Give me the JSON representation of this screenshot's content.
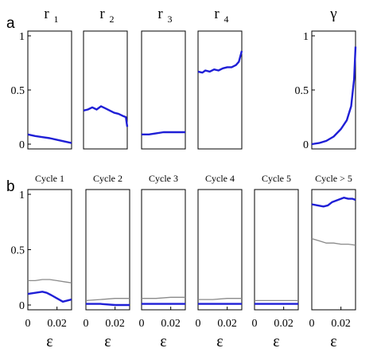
{
  "figure": {
    "label_a": "a",
    "label_b": "b"
  },
  "colors": {
    "blue": "#1f1fd6",
    "gray": "#8a8a8a",
    "frame": "#000000"
  },
  "chart_data": [
    {
      "type": "line",
      "title": "r",
      "title_sub": "1",
      "ylim": [
        0,
        1.0
      ],
      "yticks": [
        {
          "v": 0,
          "label": "0"
        },
        {
          "v": 0.5,
          "label": "0.5"
        },
        {
          "v": 1,
          "label": "1"
        }
      ],
      "xlim": [
        0,
        0.03
      ],
      "xticks": [],
      "series": [
        {
          "color": "blue",
          "x": [
            0,
            0.005,
            0.01,
            0.015,
            0.02,
            0.025,
            0.03
          ],
          "y": [
            0.09,
            0.075,
            0.065,
            0.055,
            0.04,
            0.025,
            0.01
          ]
        }
      ]
    },
    {
      "type": "line",
      "title": "r",
      "title_sub": "2",
      "ylim": [
        0,
        1.0
      ],
      "yticks": [],
      "xlim": [
        0,
        0.03
      ],
      "xticks": [],
      "series": [
        {
          "color": "blue",
          "x": [
            0,
            0.003,
            0.006,
            0.009,
            0.012,
            0.015,
            0.018,
            0.021,
            0.024,
            0.027,
            0.029,
            0.03
          ],
          "y": [
            0.31,
            0.32,
            0.34,
            0.32,
            0.35,
            0.33,
            0.31,
            0.29,
            0.28,
            0.26,
            0.25,
            0.16
          ]
        }
      ]
    },
    {
      "type": "line",
      "title": "r",
      "title_sub": "3",
      "ylim": [
        0,
        1.0
      ],
      "yticks": [],
      "xlim": [
        0,
        0.03
      ],
      "xticks": [],
      "series": [
        {
          "color": "blue",
          "x": [
            0,
            0.005,
            0.01,
            0.015,
            0.02,
            0.025,
            0.03
          ],
          "y": [
            0.09,
            0.09,
            0.1,
            0.11,
            0.11,
            0.11,
            0.11
          ]
        }
      ]
    },
    {
      "type": "line",
      "title": "r",
      "title_sub": "4",
      "ylim": [
        0,
        1.0
      ],
      "yticks": [],
      "xlim": [
        0,
        0.03
      ],
      "xticks": [],
      "series": [
        {
          "color": "blue",
          "x": [
            0,
            0.003,
            0.005,
            0.008,
            0.011,
            0.014,
            0.017,
            0.02,
            0.023,
            0.026,
            0.028,
            0.03
          ],
          "y": [
            0.67,
            0.66,
            0.68,
            0.67,
            0.69,
            0.68,
            0.7,
            0.71,
            0.71,
            0.73,
            0.76,
            0.86
          ]
        }
      ]
    },
    {
      "type": "line",
      "title": "γ",
      "title_sub": "",
      "ylim": [
        0,
        1.0
      ],
      "yticks": [
        {
          "v": 0,
          "label": "0"
        },
        {
          "v": 0.5,
          "label": "0.5"
        },
        {
          "v": 1,
          "label": "1"
        }
      ],
      "xlim": [
        0,
        0.03
      ],
      "xticks": [],
      "series": [
        {
          "color": "blue",
          "x": [
            0,
            0.005,
            0.01,
            0.015,
            0.02,
            0.024,
            0.027,
            0.029,
            0.03
          ],
          "y": [
            0.0,
            0.01,
            0.03,
            0.07,
            0.14,
            0.22,
            0.35,
            0.6,
            0.9
          ]
        }
      ]
    },
    {
      "type": "line",
      "title": "Cycle 1",
      "ylim": [
        0,
        1.0
      ],
      "yticks": [
        {
          "v": 0,
          "label": "0"
        },
        {
          "v": 0.5,
          "label": "0.5"
        },
        {
          "v": 1,
          "label": "1"
        }
      ],
      "xlim": [
        0,
        0.03
      ],
      "xticks": [
        {
          "v": 0,
          "label": "0"
        },
        {
          "v": 0.02,
          "label": "0.02"
        }
      ],
      "xlabel": "ε",
      "series": [
        {
          "color": "gray",
          "x": [
            0,
            0.005,
            0.01,
            0.015,
            0.02,
            0.025,
            0.03
          ],
          "y": [
            0.22,
            0.22,
            0.23,
            0.23,
            0.22,
            0.21,
            0.2
          ]
        },
        {
          "color": "blue",
          "x": [
            0,
            0.005,
            0.01,
            0.013,
            0.016,
            0.02,
            0.024,
            0.027,
            0.03
          ],
          "y": [
            0.1,
            0.11,
            0.12,
            0.11,
            0.09,
            0.06,
            0.03,
            0.04,
            0.05
          ]
        }
      ]
    },
    {
      "type": "line",
      "title": "Cycle 2",
      "ylim": [
        0,
        1.0
      ],
      "yticks": [],
      "xlim": [
        0,
        0.03
      ],
      "xticks": [
        {
          "v": 0,
          "label": "0"
        },
        {
          "v": 0.02,
          "label": "0.02"
        }
      ],
      "xlabel": "ε",
      "series": [
        {
          "color": "gray",
          "x": [
            0,
            0.01,
            0.02,
            0.03
          ],
          "y": [
            0.04,
            0.05,
            0.06,
            0.06
          ]
        },
        {
          "color": "blue",
          "x": [
            0,
            0.01,
            0.02,
            0.03
          ],
          "y": [
            0.01,
            0.01,
            0.0,
            0.0
          ]
        }
      ]
    },
    {
      "type": "line",
      "title": "Cycle 3",
      "ylim": [
        0,
        1.0
      ],
      "yticks": [],
      "xlim": [
        0,
        0.03
      ],
      "xticks": [
        {
          "v": 0,
          "label": "0"
        },
        {
          "v": 0.02,
          "label": "0.02"
        }
      ],
      "xlabel": "ε",
      "series": [
        {
          "color": "gray",
          "x": [
            0,
            0.01,
            0.02,
            0.03
          ],
          "y": [
            0.06,
            0.06,
            0.07,
            0.07
          ]
        },
        {
          "color": "blue",
          "x": [
            0,
            0.01,
            0.02,
            0.03
          ],
          "y": [
            0.01,
            0.01,
            0.01,
            0.01
          ]
        }
      ]
    },
    {
      "type": "line",
      "title": "Cycle 4",
      "ylim": [
        0,
        1.0
      ],
      "yticks": [],
      "xlim": [
        0,
        0.03
      ],
      "xticks": [
        {
          "v": 0,
          "label": "0"
        },
        {
          "v": 0.02,
          "label": "0.02"
        }
      ],
      "xlabel": "ε",
      "series": [
        {
          "color": "gray",
          "x": [
            0,
            0.01,
            0.02,
            0.03
          ],
          "y": [
            0.05,
            0.05,
            0.06,
            0.06
          ]
        },
        {
          "color": "blue",
          "x": [
            0,
            0.01,
            0.02,
            0.03
          ],
          "y": [
            0.01,
            0.01,
            0.01,
            0.01
          ]
        }
      ]
    },
    {
      "type": "line",
      "title": "Cycle 5",
      "ylim": [
        0,
        1.0
      ],
      "yticks": [],
      "xlim": [
        0,
        0.03
      ],
      "xticks": [
        {
          "v": 0,
          "label": "0"
        },
        {
          "v": 0.02,
          "label": "0.02"
        }
      ],
      "xlabel": "ε",
      "series": [
        {
          "color": "gray",
          "x": [
            0,
            0.01,
            0.02,
            0.03
          ],
          "y": [
            0.04,
            0.04,
            0.04,
            0.04
          ]
        },
        {
          "color": "blue",
          "x": [
            0,
            0.01,
            0.02,
            0.03
          ],
          "y": [
            0.01,
            0.01,
            0.01,
            0.01
          ]
        }
      ]
    },
    {
      "type": "line",
      "title": "Cycle > 5",
      "ylim": [
        0,
        1.0
      ],
      "yticks": [],
      "xlim": [
        0,
        0.03
      ],
      "xticks": [
        {
          "v": 0,
          "label": "0"
        },
        {
          "v": 0.02,
          "label": "0.02"
        }
      ],
      "xlabel": "ε",
      "series": [
        {
          "color": "gray",
          "x": [
            0,
            0.005,
            0.01,
            0.015,
            0.02,
            0.025,
            0.03
          ],
          "y": [
            0.6,
            0.58,
            0.56,
            0.56,
            0.55,
            0.55,
            0.54
          ]
        },
        {
          "color": "blue",
          "x": [
            0,
            0.004,
            0.008,
            0.011,
            0.014,
            0.018,
            0.022,
            0.025,
            0.028,
            0.03
          ],
          "y": [
            0.91,
            0.9,
            0.89,
            0.9,
            0.93,
            0.95,
            0.97,
            0.96,
            0.96,
            0.95
          ]
        }
      ]
    }
  ]
}
